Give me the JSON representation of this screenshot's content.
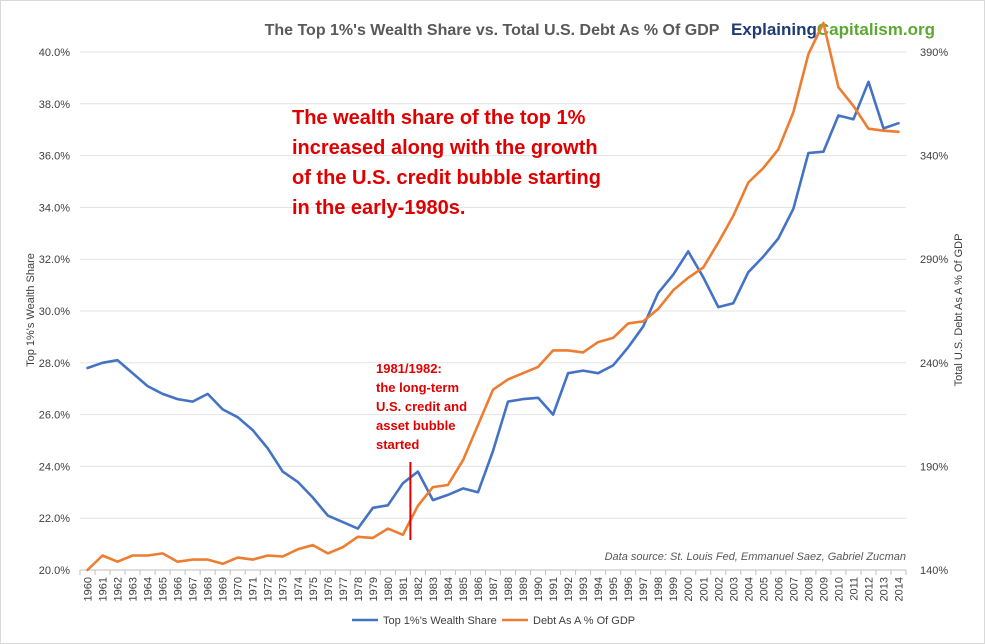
{
  "chart_data": {
    "type": "line",
    "title": "The Top 1%'s Wealth Share vs. Total U.S. Debt As % Of GDP",
    "brand": {
      "part1": "Explaining",
      "part2": "Capitalism.org"
    },
    "ylabel_left": "Top 1%'s Wealth Share",
    "ylabel_right": "Total U.S. Debt As A % Of GDP",
    "left_axis": {
      "min": 20,
      "max": 40,
      "step": 2,
      "ticks": [
        "20.0%",
        "22.0%",
        "24.0%",
        "26.0%",
        "28.0%",
        "30.0%",
        "32.0%",
        "34.0%",
        "36.0%",
        "38.0%",
        "40.0%"
      ]
    },
    "right_axis": {
      "min": 140,
      "max": 390,
      "ticks": [
        {
          "value": 140,
          "label": "140%"
        },
        {
          "value": 190,
          "label": "190%"
        },
        {
          "value": 240,
          "label": "240%"
        },
        {
          "value": 290,
          "label": "290%"
        },
        {
          "value": 340,
          "label": "340%"
        },
        {
          "value": 390,
          "label": "390%"
        }
      ]
    },
    "x": [
      "1960",
      "1961",
      "1962",
      "1963",
      "1964",
      "1965",
      "1966",
      "1967",
      "1968",
      "1969",
      "1970",
      "1971",
      "1972",
      "1973",
      "1974",
      "1975",
      "1976",
      "1977",
      "1978",
      "1979",
      "1980",
      "1981",
      "1982",
      "1983",
      "1984",
      "1985",
      "1986",
      "1987",
      "1988",
      "1989",
      "1990",
      "1991",
      "1992",
      "1993",
      "1994",
      "1995",
      "1996",
      "1997",
      "1998",
      "1999",
      "2000",
      "2001",
      "2002",
      "2003",
      "2004",
      "2005",
      "2006",
      "2007",
      "2008",
      "2009",
      "2010",
      "2011",
      "2012",
      "2013",
      "2014"
    ],
    "series": [
      {
        "name": "Top 1%'s Wealth Share",
        "axis": "left",
        "color": "#4472C4",
        "values": [
          27.8,
          28.0,
          28.1,
          27.6,
          27.1,
          26.8,
          26.6,
          26.5,
          26.8,
          26.2,
          25.9,
          25.4,
          24.7,
          23.8,
          23.4,
          22.8,
          22.1,
          21.85,
          21.6,
          22.4,
          22.5,
          23.35,
          23.8,
          22.7,
          22.9,
          23.15,
          23.0,
          24.6,
          26.5,
          26.6,
          26.65,
          26.0,
          27.6,
          27.7,
          27.6,
          27.9,
          28.6,
          29.4,
          30.7,
          31.4,
          32.3,
          31.3,
          30.15,
          30.3,
          31.5,
          32.1,
          32.8,
          33.95,
          36.1,
          36.15,
          37.55,
          37.4,
          38.85,
          37.05,
          37.25
        ]
      },
      {
        "name": "Debt As A % Of GDP",
        "axis": "right",
        "color": "#ED7D31",
        "values": [
          140,
          147,
          144,
          147,
          147,
          148,
          144,
          145,
          145,
          143,
          146,
          145,
          147,
          146.5,
          150,
          152,
          148,
          151,
          156,
          155.5,
          160,
          157,
          171,
          180,
          181,
          193,
          210,
          227,
          232,
          235,
          238,
          246,
          246,
          245,
          250,
          252,
          259,
          260,
          266,
          275,
          281,
          286,
          298,
          311,
          327,
          334,
          343,
          361,
          389,
          404,
          373,
          364,
          353,
          352,
          351.5
        ]
      }
    ],
    "annotation_main": [
      "The wealth share of the top 1%",
      "increased along with the growth",
      "of the U.S. credit bubble starting",
      "in the early-1980s."
    ],
    "annotation_1981": [
      "1981/1982:",
      "the long-term",
      "U.S. credit and",
      "asset bubble",
      "started"
    ],
    "annotation_marker_year": "1982",
    "annotation_color": "#E00000",
    "source": "Data source: St. Louis Fed, Emmanuel Saez, Gabriel Zucman",
    "grid": true,
    "legend_position": "bottom"
  }
}
